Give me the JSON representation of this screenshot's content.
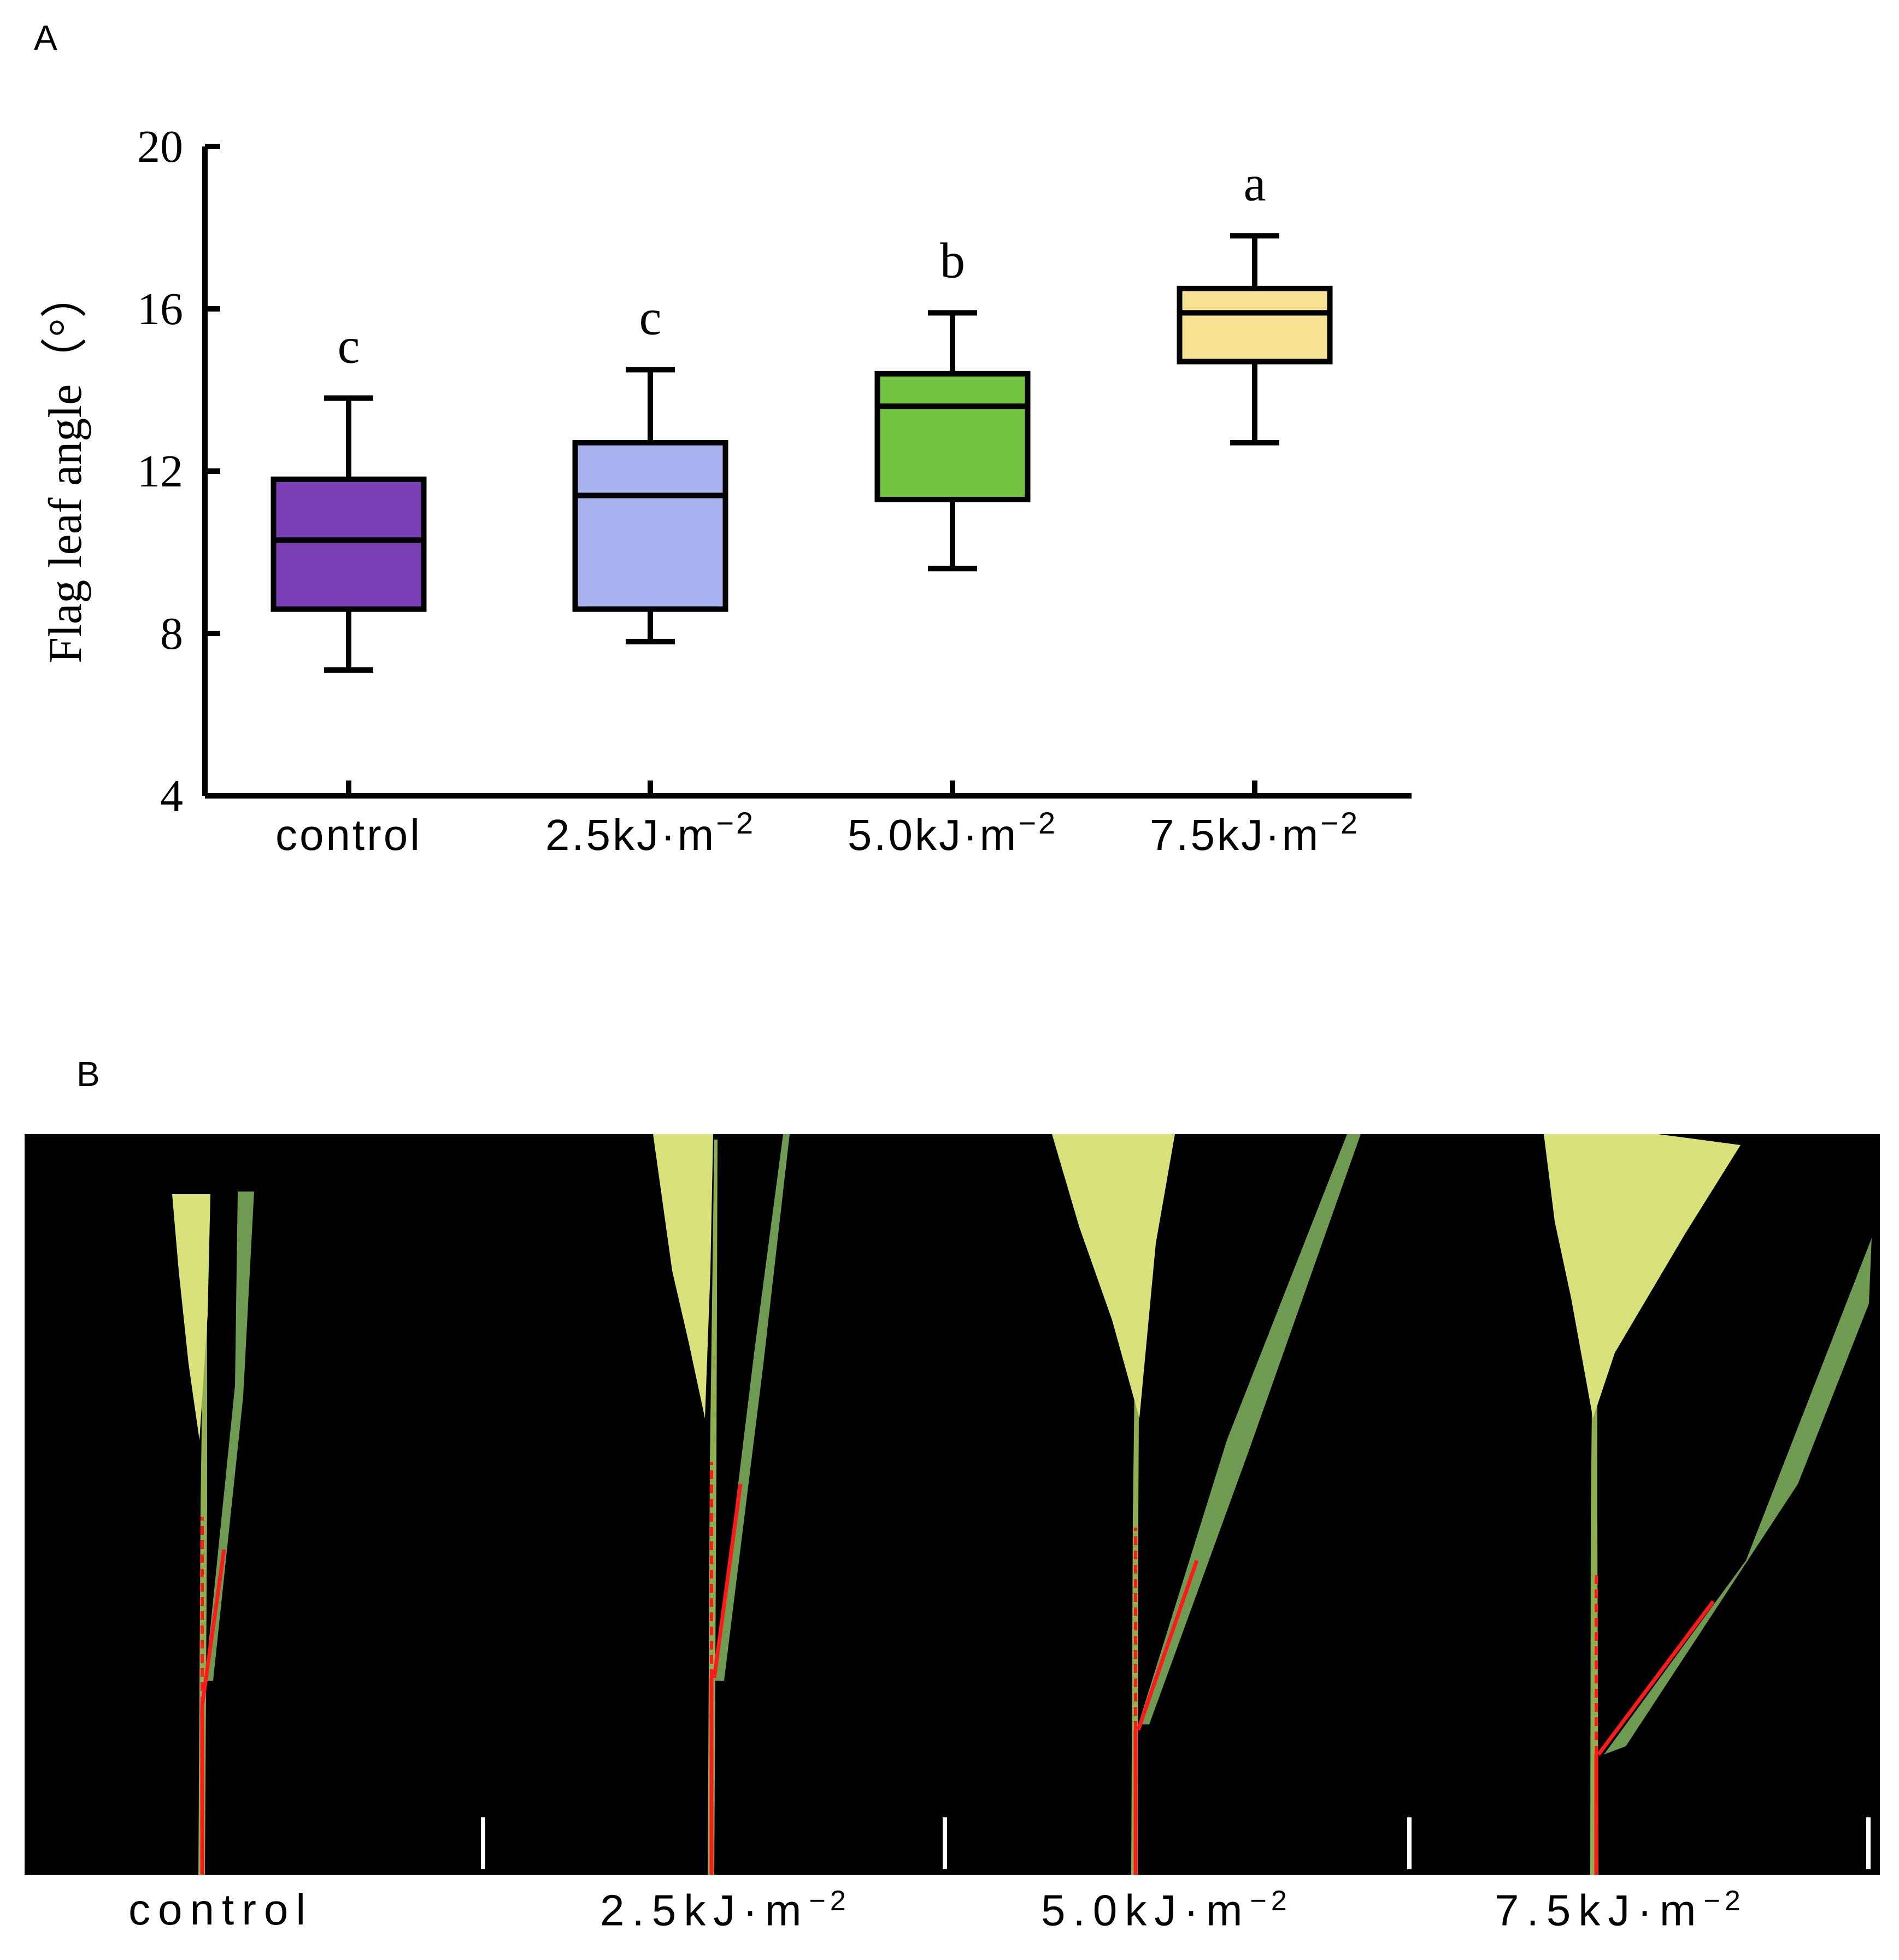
{
  "panel_a_label": "A",
  "panel_b_label": "B",
  "chart_data": {
    "type": "box",
    "title": "",
    "xlabel": "",
    "ylabel": "Flag leaf angle（°）",
    "ylim": [
      4,
      20
    ],
    "yticks": [
      4,
      8,
      12,
      16,
      20
    ],
    "categories": [
      "control",
      "2.5kJ·m",
      "5.0kJ·m",
      "7.5kJ·m"
    ],
    "category_exponent": "−2",
    "boxes": [
      {
        "name": "control",
        "min": 7.1,
        "q1": 8.6,
        "median": 10.3,
        "q3": 11.8,
        "max": 13.8,
        "sig": "c",
        "color": "#7b3fb5"
      },
      {
        "name": "2.5kJ·m−2",
        "min": 7.8,
        "q1": 8.6,
        "median": 11.4,
        "q3": 12.7,
        "max": 14.5,
        "sig": "c",
        "color": "#a9b3f2"
      },
      {
        "name": "5.0kJ·m−2",
        "min": 9.6,
        "q1": 11.3,
        "median": 13.6,
        "q3": 14.4,
        "max": 15.9,
        "sig": "b",
        "color": "#74c442"
      },
      {
        "name": "7.5kJ·m−2",
        "min": 12.7,
        "q1": 14.7,
        "median": 15.9,
        "q3": 16.5,
        "max": 17.8,
        "sig": "a",
        "color": "#f7e393"
      }
    ]
  },
  "panel_b": {
    "captions": [
      "control",
      "2.5kJ·m",
      "5.0kJ·m",
      "7.5kJ·m"
    ],
    "caption_exponent": "−2",
    "leaf_color": "#6f9a52",
    "panicle_color": "#d9e27a",
    "annotation_color": "#ff1a1a"
  }
}
